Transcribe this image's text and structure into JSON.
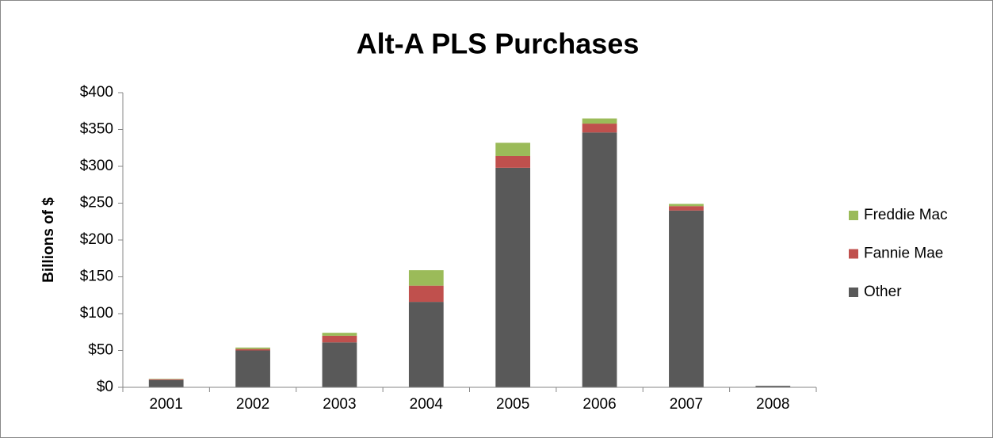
{
  "chart_data": {
    "type": "stacked-bar",
    "title": "Alt-A PLS Purchases",
    "y_label": "Billions of $",
    "categories": [
      "2001",
      "2002",
      "2003",
      "2004",
      "2005",
      "2006",
      "2007",
      "2008"
    ],
    "series": [
      {
        "name": "Other",
        "color": "#595959",
        "values": [
          10,
          50,
          61,
          116,
          298,
          346,
          240,
          2
        ]
      },
      {
        "name": "Fannie Mae",
        "color": "#c0504d",
        "values": [
          1,
          2,
          9,
          22,
          16,
          12,
          6,
          0
        ]
      },
      {
        "name": "Freddie Mac",
        "color": "#9bbb59",
        "values": [
          0.5,
          2,
          4,
          21,
          18,
          7,
          3,
          0
        ]
      }
    ],
    "ylim": [
      0,
      400
    ],
    "yticks": [
      {
        "value": 0,
        "label": "$0"
      },
      {
        "value": 50,
        "label": "$50"
      },
      {
        "value": 100,
        "label": "$100"
      },
      {
        "value": 150,
        "label": "$150"
      },
      {
        "value": 200,
        "label": "$200"
      },
      {
        "value": 250,
        "label": "$250"
      },
      {
        "value": 300,
        "label": "$300"
      },
      {
        "value": 350,
        "label": "$350"
      },
      {
        "value": 400,
        "label": "$400"
      }
    ],
    "grid": false,
    "legend": "right"
  }
}
